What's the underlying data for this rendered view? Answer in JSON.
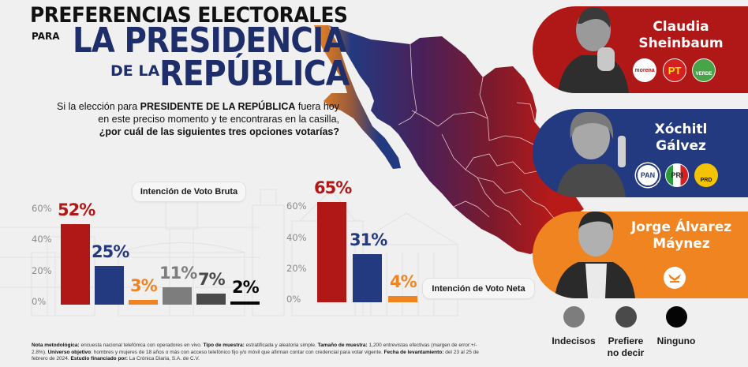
{
  "header": {
    "line1": "PREFERENCIAS ELECTORALES",
    "para": "PARA",
    "line2": "LA PRESIDENCIA",
    "dela": "DE LA",
    "line3": "REPÚBLICA"
  },
  "question": {
    "part1": "Si la elección para ",
    "bold1": "PRESIDENTE DE LA REPÚBLICA",
    "part2": " fuera hoy en este preciso momento y te encontraras en la casilla,",
    "bold2": "¿por cuál de las siguientes tres opciones votarías?"
  },
  "colors": {
    "morena_red": "#b01818",
    "pan_blue": "#233a80",
    "mc_orange": "#ef8421",
    "indecisos": "#7d7d7d",
    "prefiere": "#4a4a4a",
    "ninguno": "#050505",
    "title_navy": "#1e2e6b"
  },
  "chart_data": [
    {
      "type": "bar",
      "title": "Intención de Voto Bruta",
      "categories": [
        "Claudia Sheinbaum",
        "Xóchitl Gálvez",
        "Jorge Álvarez Máynez",
        "Indecisos",
        "Prefiere no decir",
        "Ninguno"
      ],
      "values": [
        52,
        25,
        3,
        11,
        7,
        2
      ],
      "labels": [
        "52%",
        "25%",
        "3%",
        "11%",
        "7%",
        "2%"
      ],
      "colors": [
        "#b01818",
        "#233a80",
        "#ef8421",
        "#7d7d7d",
        "#4a4a4a",
        "#050505"
      ],
      "yticks": [
        "0%",
        "20%",
        "40%",
        "60%"
      ],
      "ylim": [
        0,
        60
      ],
      "xlabel": "",
      "ylabel": ""
    },
    {
      "type": "bar",
      "title": "Intención de Voto Neta",
      "categories": [
        "Claudia Sheinbaum",
        "Xóchitl Gálvez",
        "Jorge Álvarez Máynez"
      ],
      "values": [
        65,
        31,
        4
      ],
      "labels": [
        "65%",
        "31%",
        "4%"
      ],
      "colors": [
        "#b01818",
        "#233a80",
        "#ef8421"
      ],
      "yticks": [
        "0%",
        "20%",
        "40%",
        "60%"
      ],
      "ylim": [
        0,
        60
      ],
      "xlabel": "",
      "ylabel": ""
    }
  ],
  "candidates": [
    {
      "name_line1": "Claudia",
      "name_line2": "Sheinbaum",
      "color": "#b01818",
      "parties": [
        "morena",
        "PT",
        "VERDE"
      ]
    },
    {
      "name_line1": "Xóchitl",
      "name_line2": "Gálvez",
      "color": "#233a80",
      "parties": [
        "PAN",
        "PRI",
        "PRD"
      ]
    },
    {
      "name_line1": "Jorge Álvarez",
      "name_line2": "Máynez",
      "color": "#ef8421",
      "parties": [
        "MOVIMIENTO CIUDADANO"
      ]
    }
  ],
  "legend": [
    {
      "label": "Indecisos",
      "color": "#7d7d7d"
    },
    {
      "label": "Prefiere no decir",
      "color": "#4a4a4a"
    },
    {
      "label": "Ninguno",
      "color": "#050505"
    }
  ],
  "footnote": {
    "k1": "Nota metodológica:",
    "v1": " encuesta nacional telefónica con operadores en vivo. ",
    "k2": "Tipo de muestra:",
    "v2": " estratificada y aleatoria simple. ",
    "k3": "Tamaño de muestra:",
    "v3": " 1,200 entrevistas efectivas (margen de error:+/- 2.8%). ",
    "k4": "Universo objetivo",
    "v4": ": hombres y mujeres de 18 años o más con acceso telefónico fijo y/o móvil que afirman contar con credencial para votar vigente. ",
    "k5": "Fecha de levantamiento:",
    "v5": " del 23 al 25 de febrero de 2024. ",
    "k6": "Estudio financiado por:",
    "v6": " La Crónica Diaria, S.A. de C.V."
  }
}
